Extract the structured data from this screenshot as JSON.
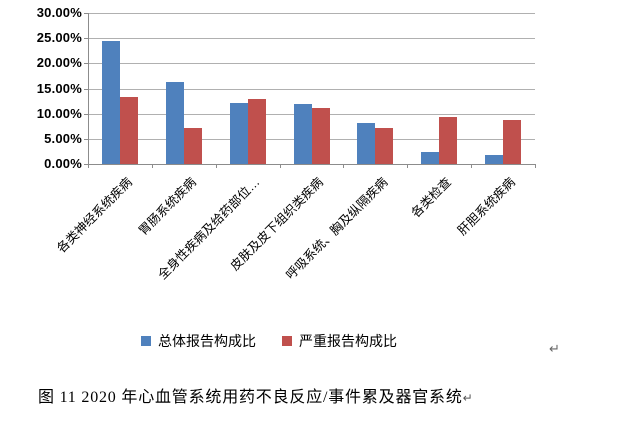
{
  "chart_data": {
    "type": "bar",
    "title": "",
    "xlabel": "",
    "ylabel": "",
    "categories": [
      "各类神经系统疾病",
      "胃肠系统疾病",
      "全身性疾病及给药部位…",
      "皮肤及皮下组织类疾病",
      "呼吸系统、胸及纵隔疾病",
      "各类检查",
      "肝胆系统疾病"
    ],
    "series": [
      {
        "name": "总体报告构成比",
        "color": "#4F81BD",
        "values": [
          24.4,
          16.3,
          12.2,
          11.9,
          8.2,
          2.4,
          1.7
        ]
      },
      {
        "name": "严重报告构成比",
        "color": "#C0504D",
        "values": [
          13.4,
          7.1,
          12.9,
          11.1,
          7.1,
          9.4,
          8.8
        ]
      }
    ],
    "ylim": [
      0,
      30
    ],
    "yticks": [
      "30.00%",
      "25.00%",
      "20.00%",
      "15.00%",
      "10.00%",
      "5.00%",
      "0.00%"
    ],
    "grid": true,
    "legend_position": "bottom"
  },
  "document": {
    "chart_return_mark": "↵",
    "caption": "图 11  2020 年心血管系统用药不良反应/事件累及器官系统",
    "caption_return_mark": "↵"
  }
}
